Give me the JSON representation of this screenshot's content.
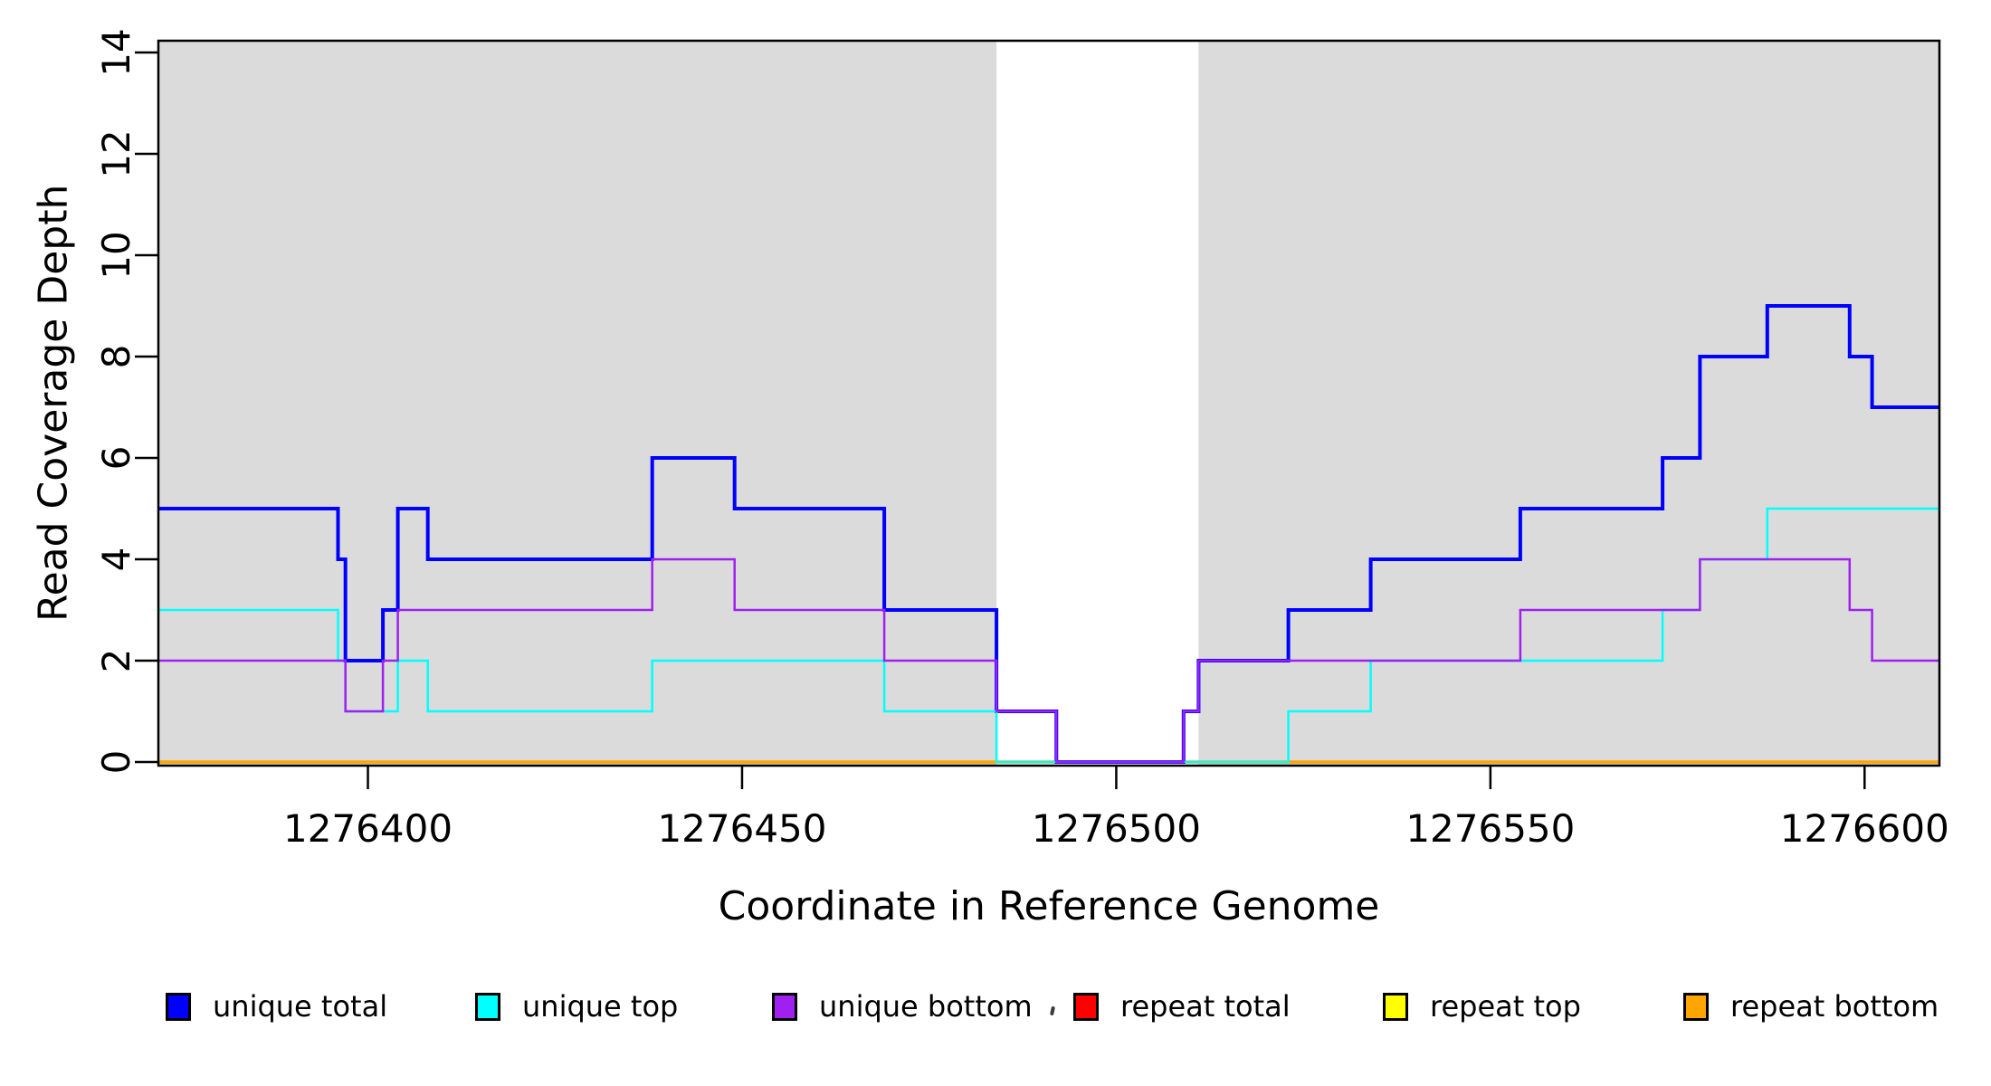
{
  "chart_data": {
    "type": "line",
    "subtype": "step-coverage",
    "title": "",
    "xlabel": "Coordinate in Reference Genome",
    "ylabel": "Read Coverage Depth",
    "xlim": [
      1276372,
      1276610
    ],
    "ylim": [
      0,
      14
    ],
    "x_ticks": [
      1276400,
      1276450,
      1276500,
      1276550,
      1276600
    ],
    "y_ticks": [
      0,
      2,
      4,
      6,
      8,
      10,
      12,
      14
    ],
    "grid": false,
    "plot_background": "#ffffff",
    "band_color": "#DBDBDB",
    "background_bands": [
      {
        "from": 1276372,
        "to": 1276484
      },
      {
        "from": 1276511,
        "to": 1276610
      }
    ],
    "series": [
      {
        "name": "repeat total",
        "color": "#FF0000",
        "width": 2.5,
        "steps": [
          [
            1276372,
            0
          ]
        ]
      },
      {
        "name": "repeat top",
        "color": "#FFFF00",
        "width": 2.5,
        "steps": [
          [
            1276372,
            0
          ]
        ]
      },
      {
        "name": "repeat bottom",
        "color": "#FFA500",
        "width": 3.5,
        "steps": [
          [
            1276372,
            0
          ]
        ]
      },
      {
        "name": "unique total",
        "color": "#0000FF",
        "width": 4,
        "steps": [
          [
            1276372,
            5
          ],
          [
            1276396,
            4
          ],
          [
            1276397,
            2
          ],
          [
            1276402,
            3
          ],
          [
            1276404,
            5
          ],
          [
            1276408,
            4
          ],
          [
            1276438,
            6
          ],
          [
            1276449,
            5
          ],
          [
            1276469,
            3
          ],
          [
            1276484,
            1
          ],
          [
            1276492,
            0
          ],
          [
            1276509,
            1
          ],
          [
            1276511,
            2
          ],
          [
            1276523,
            3
          ],
          [
            1276534,
            4
          ],
          [
            1276554,
            5
          ],
          [
            1276573,
            6
          ],
          [
            1276578,
            8
          ],
          [
            1276587,
            9
          ],
          [
            1276598,
            8
          ],
          [
            1276601,
            7
          ]
        ]
      },
      {
        "name": "unique top",
        "color": "#00FFFF",
        "width": 2.5,
        "steps": [
          [
            1276372,
            3
          ],
          [
            1276396,
            2
          ],
          [
            1276397,
            1
          ],
          [
            1276404,
            2
          ],
          [
            1276408,
            1
          ],
          [
            1276438,
            2
          ],
          [
            1276469,
            1
          ],
          [
            1276484,
            0
          ],
          [
            1276523,
            1
          ],
          [
            1276534,
            2
          ],
          [
            1276573,
            3
          ],
          [
            1276578,
            4
          ],
          [
            1276587,
            5
          ]
        ]
      },
      {
        "name": "unique bottom",
        "color": "#A020F0",
        "width": 2.5,
        "steps": [
          [
            1276372,
            2
          ],
          [
            1276397,
            1
          ],
          [
            1276402,
            2
          ],
          [
            1276404,
            3
          ],
          [
            1276438,
            4
          ],
          [
            1276449,
            3
          ],
          [
            1276469,
            2
          ],
          [
            1276484,
            1
          ],
          [
            1276492,
            0
          ],
          [
            1276509,
            1
          ],
          [
            1276511,
            2
          ],
          [
            1276554,
            3
          ],
          [
            1276578,
            4
          ],
          [
            1276598,
            3
          ],
          [
            1276601,
            2
          ]
        ]
      }
    ],
    "legend": {
      "position": "bottom",
      "items": [
        {
          "label": "unique total",
          "color": "#0000FF"
        },
        {
          "label": "unique top",
          "color": "#00FFFF"
        },
        {
          "label": "unique bottom",
          "color": "#A020F0"
        },
        {
          "label": "repeat total",
          "color": "#FF0000"
        },
        {
          "label": "repeat top",
          "color": "#FFFF00"
        },
        {
          "label": "repeat bottom",
          "color": "#FFA500"
        }
      ]
    }
  }
}
